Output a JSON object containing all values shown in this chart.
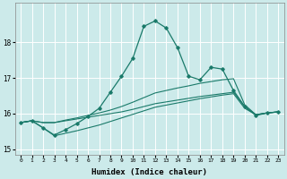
{
  "xlabel": "Humidex (Indice chaleur)",
  "ylabel": "",
  "bg_color": "#cceaea",
  "grid_color": "#ffffff",
  "line_color": "#1a7a6a",
  "ylim": [
    14.85,
    19.1
  ],
  "xlim": [
    -0.5,
    23.5
  ],
  "yticks": [
    15,
    16,
    17,
    18
  ],
  "xticks": [
    0,
    1,
    2,
    3,
    4,
    5,
    6,
    7,
    8,
    9,
    10,
    11,
    12,
    13,
    14,
    15,
    16,
    17,
    18,
    19,
    20,
    21,
    22,
    23
  ],
  "curve_main_x": [
    0,
    1,
    2,
    3,
    4,
    5,
    6,
    7,
    8,
    9,
    10,
    11,
    12,
    13,
    14,
    15,
    16,
    17,
    18,
    19,
    20,
    21,
    22,
    23
  ],
  "curve_main_y": [
    15.75,
    15.8,
    15.6,
    15.4,
    15.55,
    15.72,
    15.92,
    16.15,
    16.6,
    17.05,
    17.55,
    18.45,
    18.6,
    18.4,
    17.85,
    17.05,
    16.95,
    17.3,
    17.25,
    16.65,
    16.2,
    15.95,
    16.02,
    16.05
  ],
  "curve_top_x": [
    0,
    1,
    2,
    3,
    4,
    5,
    6,
    7,
    8,
    9,
    10,
    11,
    12,
    13,
    14,
    15,
    16,
    17,
    18,
    19,
    20,
    21,
    22,
    23
  ],
  "curve_top_y": [
    15.75,
    15.8,
    15.75,
    15.75,
    15.82,
    15.88,
    15.95,
    16.02,
    16.1,
    16.2,
    16.32,
    16.45,
    16.58,
    16.65,
    16.72,
    16.78,
    16.85,
    16.9,
    16.95,
    16.98,
    16.25,
    15.97,
    16.02,
    16.05
  ],
  "curve_mid_x": [
    0,
    1,
    2,
    3,
    4,
    5,
    6,
    7,
    8,
    9,
    10,
    11,
    12,
    13,
    14,
    15,
    16,
    17,
    18,
    19,
    20,
    21,
    22,
    23
  ],
  "curve_mid_y": [
    15.75,
    15.8,
    15.75,
    15.75,
    15.8,
    15.85,
    15.9,
    15.95,
    16.0,
    16.05,
    16.12,
    16.2,
    16.28,
    16.33,
    16.38,
    16.43,
    16.48,
    16.52,
    16.56,
    16.6,
    16.2,
    15.97,
    16.02,
    16.05
  ],
  "curve_bot_x": [
    0,
    1,
    2,
    3,
    4,
    5,
    6,
    7,
    8,
    9,
    10,
    11,
    12,
    13,
    14,
    15,
    16,
    17,
    18,
    19,
    20,
    21,
    22,
    23
  ],
  "curve_bot_y": [
    15.75,
    15.8,
    15.6,
    15.38,
    15.45,
    15.52,
    15.6,
    15.68,
    15.78,
    15.88,
    15.98,
    16.08,
    16.18,
    16.24,
    16.3,
    16.36,
    16.42,
    16.47,
    16.52,
    16.56,
    16.15,
    15.97,
    16.02,
    16.05
  ]
}
